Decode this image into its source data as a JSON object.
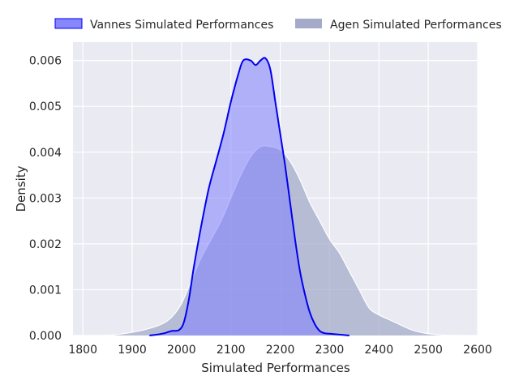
{
  "chart_data": {
    "type": "area",
    "xlabel": "Simulated Performances",
    "ylabel": "Density",
    "xlim": [
      1780,
      2600
    ],
    "ylim": [
      0,
      0.0064
    ],
    "xticks": [
      "1800",
      "1900",
      "2000",
      "2100",
      "2200",
      "2300",
      "2400",
      "2500",
      "2600"
    ],
    "yticks": [
      "0.000",
      "0.001",
      "0.002",
      "0.003",
      "0.004",
      "0.005",
      "0.006"
    ],
    "grid": true,
    "legend_position": "top",
    "series": [
      {
        "name": "Agen Simulated Performances",
        "fill_color": "#a3abc9",
        "line_color": "#ffffff",
        "points": [
          [
            1820,
            0.0
          ],
          [
            1860,
            1e-05
          ],
          [
            1900,
            7e-05
          ],
          [
            1930,
            0.00014
          ],
          [
            1960,
            0.00025
          ],
          [
            1980,
            0.0004
          ],
          [
            2000,
            0.0007
          ],
          [
            2020,
            0.0012
          ],
          [
            2040,
            0.0017
          ],
          [
            2060,
            0.0021
          ],
          [
            2080,
            0.0025
          ],
          [
            2100,
            0.003
          ],
          [
            2120,
            0.0035
          ],
          [
            2140,
            0.0039
          ],
          [
            2160,
            0.00412
          ],
          [
            2180,
            0.00412
          ],
          [
            2200,
            0.00405
          ],
          [
            2220,
            0.0038
          ],
          [
            2240,
            0.0034
          ],
          [
            2260,
            0.0029
          ],
          [
            2280,
            0.0025
          ],
          [
            2300,
            0.0021
          ],
          [
            2320,
            0.0018
          ],
          [
            2340,
            0.0014
          ],
          [
            2360,
            0.001
          ],
          [
            2380,
            0.0006
          ],
          [
            2400,
            0.00045
          ],
          [
            2420,
            0.00035
          ],
          [
            2440,
            0.00025
          ],
          [
            2460,
            0.00015
          ],
          [
            2480,
            8e-05
          ],
          [
            2500,
            4e-05
          ],
          [
            2530,
            1e-05
          ],
          [
            2565,
            0.0
          ]
        ]
      },
      {
        "name": "Vannes Simulated Performances",
        "fill_color": "#8080ff",
        "line_color": "#0000ee",
        "points": [
          [
            1935,
            0.0
          ],
          [
            1950,
            2e-05
          ],
          [
            1965,
            5e-05
          ],
          [
            1980,
            0.0001
          ],
          [
            1995,
            0.00012
          ],
          [
            2005,
            0.0003
          ],
          [
            2015,
            0.0008
          ],
          [
            2025,
            0.0015
          ],
          [
            2040,
            0.0024
          ],
          [
            2055,
            0.0032
          ],
          [
            2070,
            0.0038
          ],
          [
            2085,
            0.0044
          ],
          [
            2100,
            0.0051
          ],
          [
            2115,
            0.0057
          ],
          [
            2125,
            0.006
          ],
          [
            2140,
            0.006
          ],
          [
            2150,
            0.0059
          ],
          [
            2160,
            0.006
          ],
          [
            2170,
            0.00605
          ],
          [
            2180,
            0.0058
          ],
          [
            2190,
            0.0051
          ],
          [
            2200,
            0.0044
          ],
          [
            2210,
            0.0037
          ],
          [
            2220,
            0.0029
          ],
          [
            2230,
            0.0021
          ],
          [
            2240,
            0.0014
          ],
          [
            2250,
            0.0009
          ],
          [
            2260,
            0.0005
          ],
          [
            2270,
            0.00025
          ],
          [
            2280,
            0.0001
          ],
          [
            2290,
            5e-05
          ],
          [
            2300,
            4e-05
          ],
          [
            2320,
            2e-05
          ],
          [
            2340,
            0.0
          ]
        ]
      }
    ]
  }
}
